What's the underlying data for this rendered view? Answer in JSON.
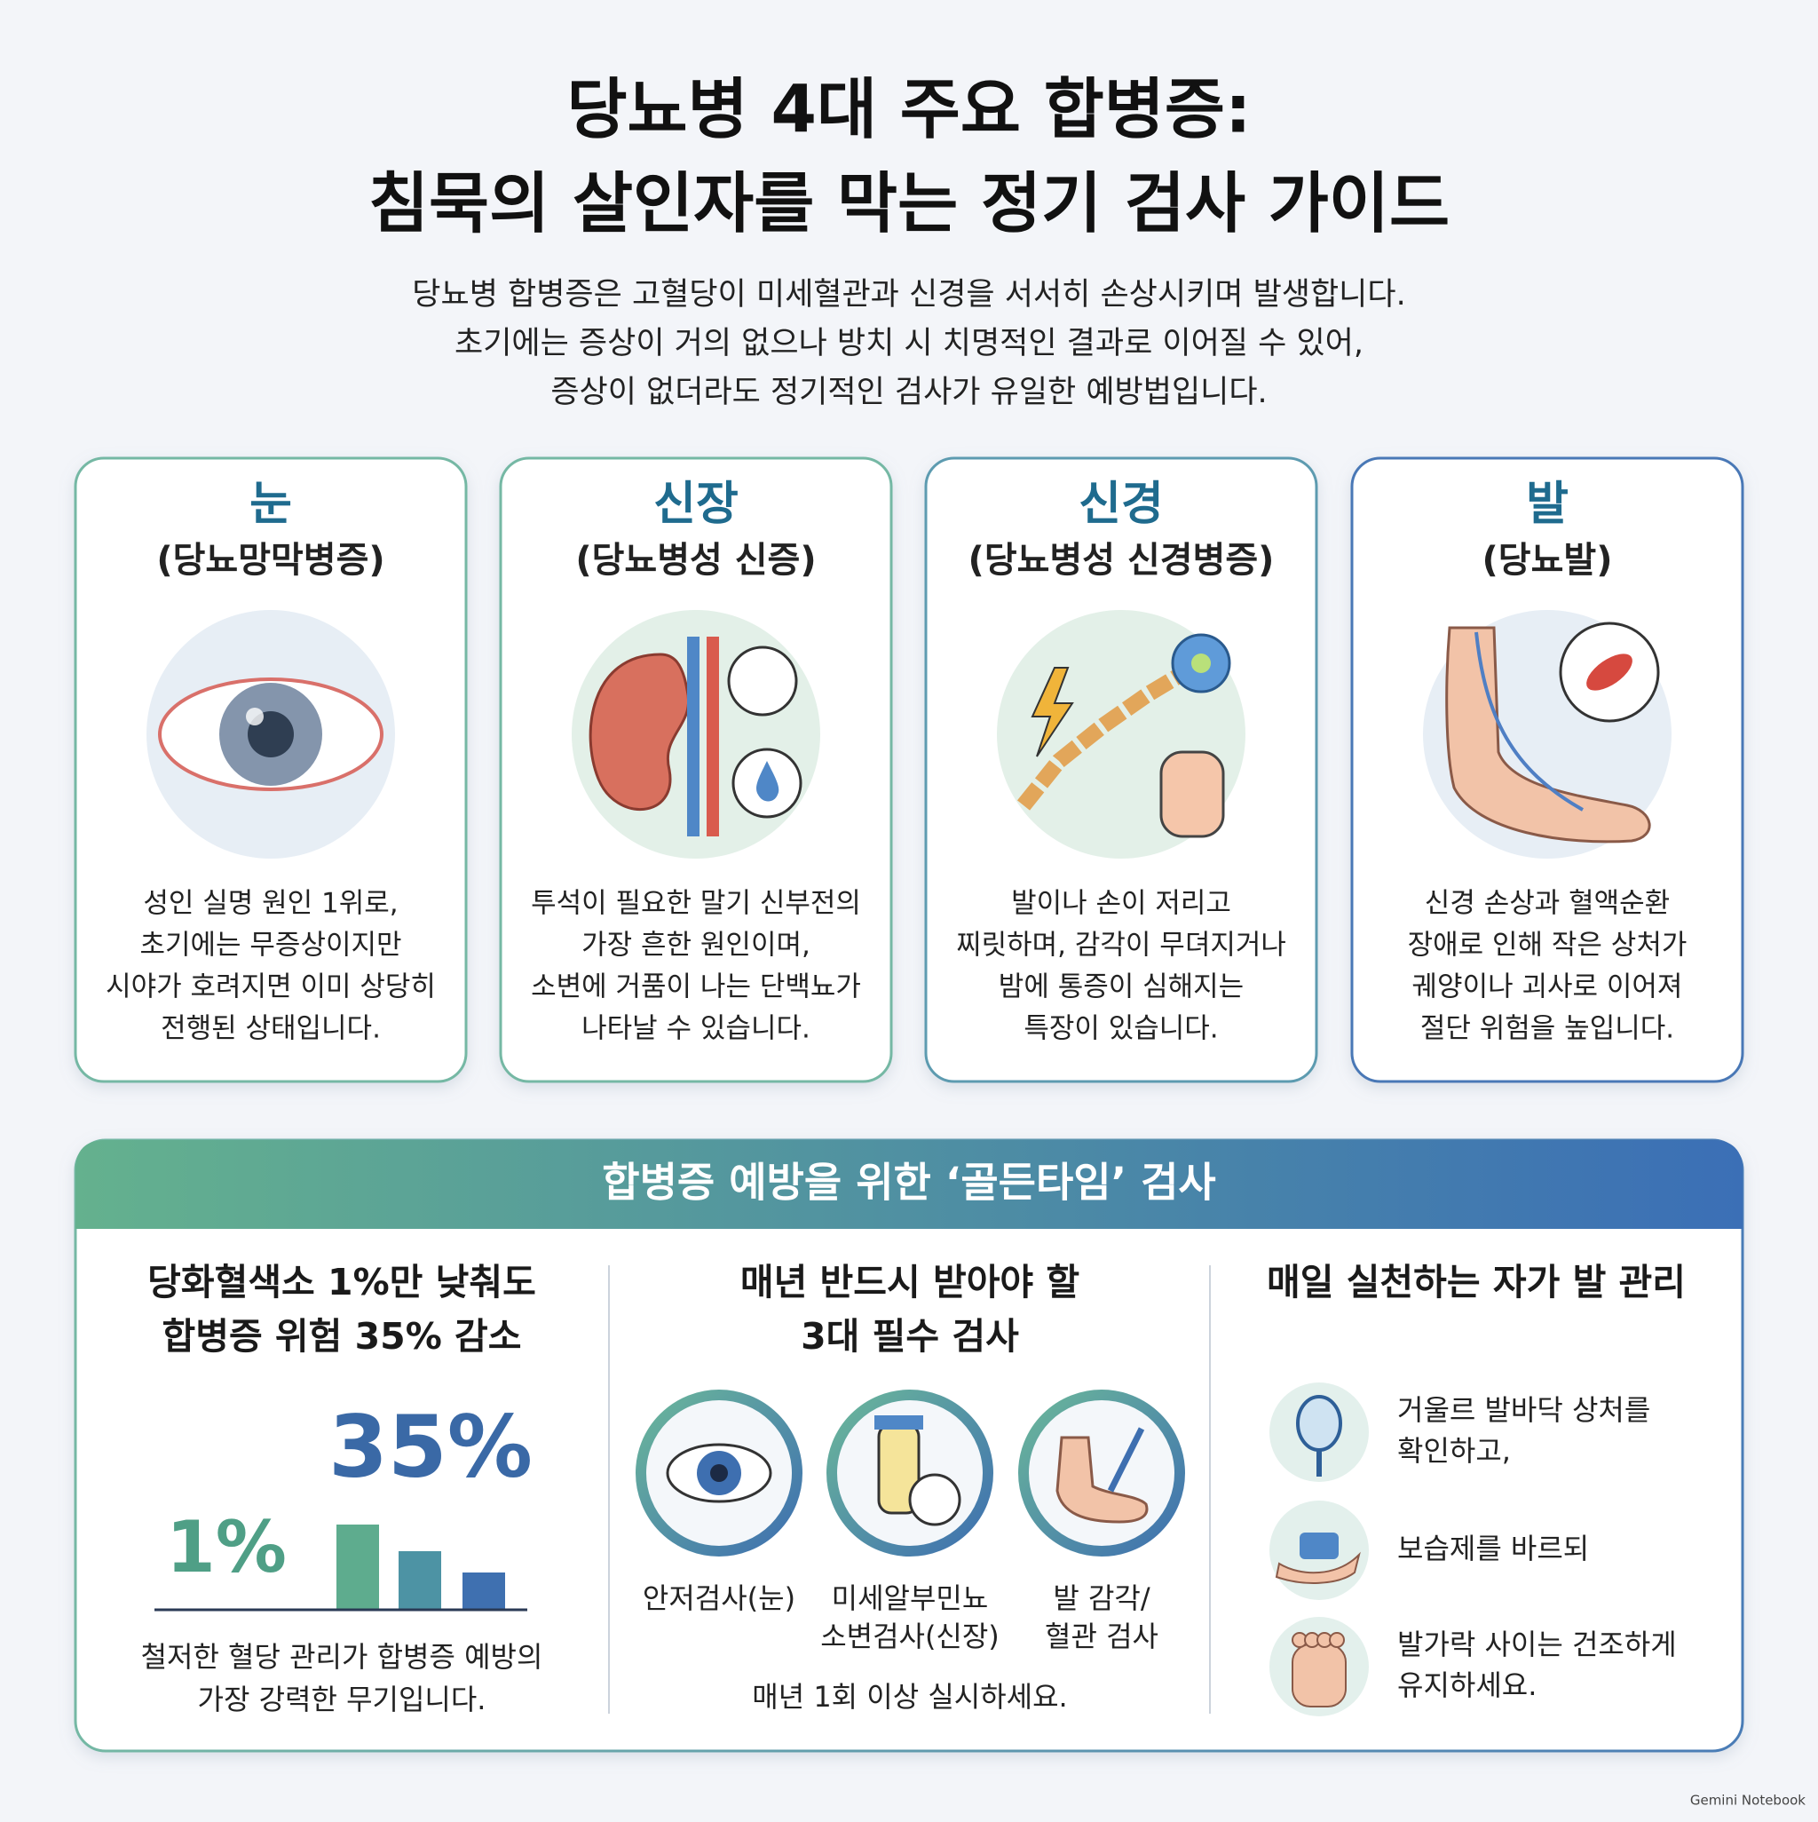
{
  "header": {
    "title_lines": [
      "당뇨병 4대 주요 합병증:",
      "침묵의 살인자를 막는 정기 검사 가이드"
    ],
    "intro_lines": [
      "당뇨병 합병증은 고혈당이 미세혈관과 신경을 서서히 손상시키며 발생합니다.",
      "초기에는 증상이 거의 없으나 방치 시 치명적인 결과로 이어질 수 있어,",
      "증상이 없더라도 정기적인 검사가 유일한 예방법입니다."
    ]
  },
  "cards": [
    {
      "title": "눈",
      "subtitle": "(당뇨망막병증)",
      "description_lines": [
        "성인 실명 원인 1위로,",
        "초기에는 무증상이지만",
        "시야가 호려지면 이미 상당히",
        "전행된 상태입니다."
      ]
    },
    {
      "title": "신장",
      "subtitle": "(당뇨병성 신증)",
      "description_lines": [
        "투석이 필요한 말기 신부전의",
        "가장 흔한 원인이며,",
        "소변에 거품이 나는 단백뇨가",
        "나타날 수 있습니다."
      ]
    },
    {
      "title": "신경",
      "subtitle": "(당뇨병성 신경병증)",
      "description_lines": [
        "발이나 손이 저리고",
        "찌릿하며, 감각이 무뎌지거나",
        "밤에 통증이 심해지는",
        "특장이 있습니다."
      ]
    },
    {
      "title": "발",
      "subtitle": "(당뇨발)",
      "description_lines": [
        "신경 손상과 혈액순환",
        "장애로 인해 작은 상처가",
        "궤양이나 괴사로 이어져",
        "절단 위험을 높입니다."
      ]
    }
  ],
  "golden_time": {
    "title": "합병증 예방을 위한 ‘골든타임’ 검사",
    "hba1c": {
      "heading_lines": [
        "당화혈색소 1%만 낮춰도",
        "합병증 위험 35% 감소"
      ],
      "left_stat": "1%",
      "right_stat": "35%",
      "note_lines": [
        "철저한 혈당 관리가 합병증 예방의",
        "가장 강력한 무기입니다."
      ]
    },
    "annual_tests": {
      "heading_lines": [
        "매년 반드시 받아야 할",
        "3대 필수 검사"
      ],
      "tests": [
        [
          "안저검사(눈)"
        ],
        [
          "미세알부민뇨",
          "소변검사(신장)"
        ],
        [
          "발 감각/",
          "혈관 검사"
        ]
      ],
      "footnote": "매년 1회 이상 실시하세요."
    },
    "foot_care": {
      "heading_lines": [
        "매일 실천하는 자가 발 관리"
      ],
      "items": [
        [
          "거울르 발바닥 상처를",
          "확인하고,"
        ],
        [
          "보습제를 바르되"
        ],
        [
          "발가락 사이는 건조하게",
          "유지하세요."
        ]
      ]
    }
  },
  "footer": {
    "brand": "Gemini Notebook"
  }
}
